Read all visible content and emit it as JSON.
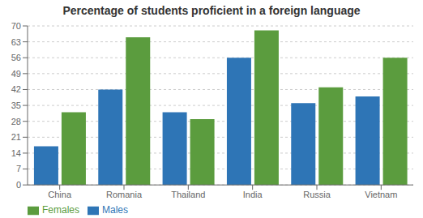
{
  "chart_data": {
    "type": "bar",
    "title": "Percentage of students proficient in a foreign language",
    "categories": [
      "China",
      "Romania",
      "Thailand",
      "India",
      "Russia",
      "Vietnam"
    ],
    "series": [
      {
        "name": "Males",
        "color": "#2E75B6",
        "values": [
          17,
          42,
          32,
          56,
          36,
          39
        ]
      },
      {
        "name": "Females",
        "color": "#5B9C3E",
        "values": [
          32,
          65,
          29,
          68,
          43,
          56
        ]
      }
    ],
    "ylim": [
      0,
      70
    ],
    "yticks": [
      0,
      7,
      14,
      21,
      28,
      35,
      42,
      49,
      56,
      63,
      70
    ],
    "grid": true,
    "legend": "bottom left"
  }
}
